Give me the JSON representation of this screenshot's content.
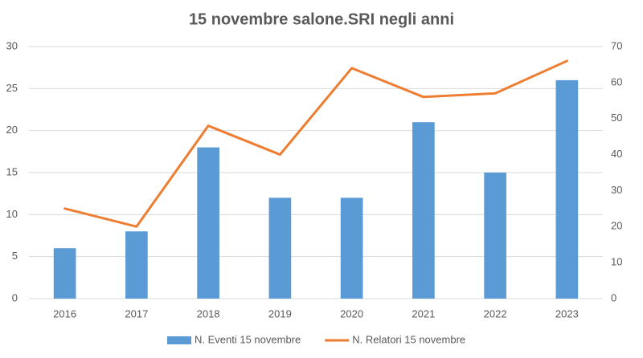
{
  "chart_data": {
    "type": "combo",
    "title": "15 novembre salone.SRI negli anni",
    "categories": [
      "2016",
      "2017",
      "2018",
      "2019",
      "2020",
      "2021",
      "2022",
      "2023"
    ],
    "series": [
      {
        "name": "N. Eventi 15 novembre",
        "type": "bar",
        "color": "#5b9bd5",
        "values": [
          6,
          8,
          18,
          12,
          12,
          21,
          15,
          26
        ]
      },
      {
        "name": "N. Relatori 15 novembre",
        "type": "line",
        "axis": "y2",
        "color": "#ed7d31",
        "values": [
          25,
          20,
          48,
          40,
          64,
          56,
          57,
          66
        ]
      }
    ],
    "ylim": [
      0,
      30
    ],
    "yticks": [
      0,
      5,
      10,
      15,
      20,
      25,
      30
    ],
    "y2lim": [
      0,
      70
    ],
    "y2ticks": [
      0,
      10,
      20,
      30,
      40,
      50,
      60,
      70
    ],
    "grid": true,
    "legend": "bottom"
  }
}
